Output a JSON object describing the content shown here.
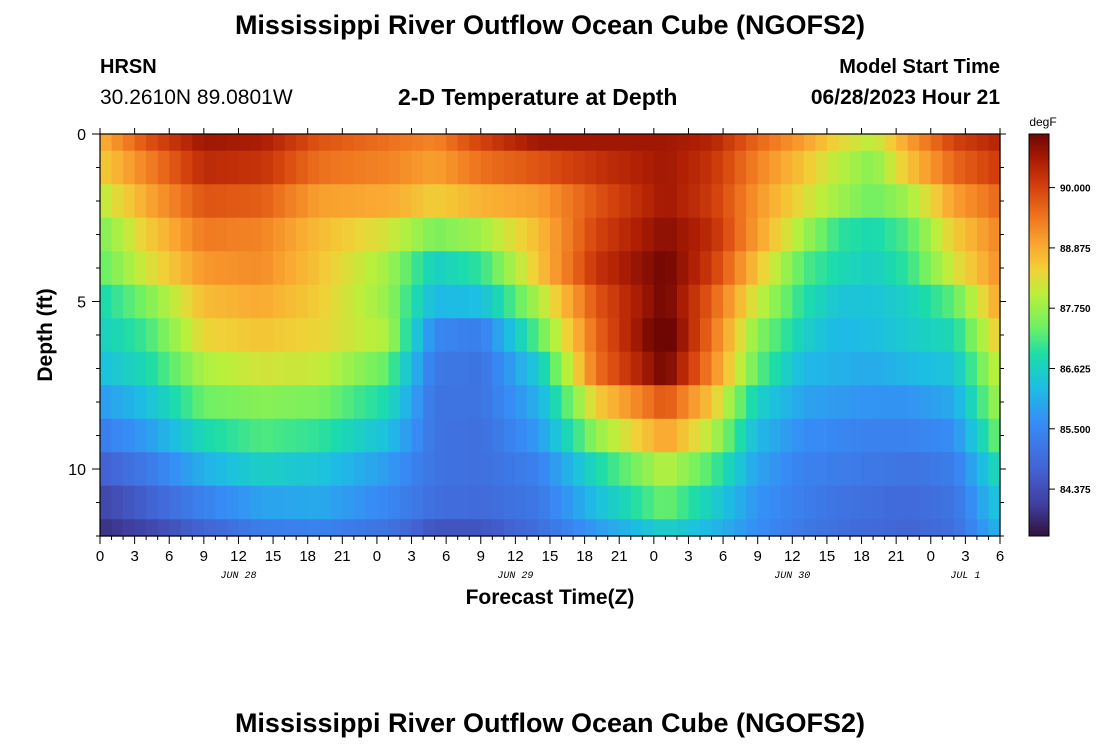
{
  "header": {
    "title": "Mississippi River Outflow Ocean Cube (NGOFS2)",
    "station": "HRSN",
    "coords": "30.2610N  89.0801W",
    "subtitle": "2-D Temperature at Depth",
    "model_start_label": "Model Start Time",
    "model_start_value": "06/28/2023 Hour 21"
  },
  "footer": {
    "title": "Mississippi River Outflow Ocean Cube (NGOFS2)"
  },
  "chart_data": {
    "type": "heatmap",
    "xlabel": "Forecast Time(Z)",
    "ylabel": "Depth (ft)",
    "x_tick_labels": [
      "0",
      "3",
      "6",
      "9",
      "12",
      "15",
      "18",
      "21",
      "0",
      "3",
      "6",
      "9",
      "12",
      "15",
      "18",
      "21",
      "0",
      "3",
      "6",
      "9",
      "12",
      "15",
      "18",
      "21",
      "0",
      "3",
      "6"
    ],
    "x_tick_step_hours": 3,
    "x_range_hours": [
      0,
      78
    ],
    "date_labels": [
      {
        "label": "JUN 28",
        "hour": 12
      },
      {
        "label": "JUN 29",
        "hour": 36
      },
      {
        "label": "JUN 30",
        "hour": 60
      },
      {
        "label": "JUL 1",
        "hour": 75
      }
    ],
    "y_ticks": [
      0,
      5,
      10
    ],
    "y_range_ft": [
      0,
      12
    ],
    "depth_levels_ft": [
      0,
      1,
      2,
      3,
      4,
      5,
      6,
      7,
      8,
      9,
      10,
      11,
      12
    ],
    "colorbar": {
      "unit": "degF",
      "range": [
        83.5,
        91.0
      ],
      "tick_values": [
        84.375,
        85.5,
        86.625,
        87.75,
        88.875,
        90.0
      ],
      "tick_labels": [
        "84.375",
        "85.500",
        "86.625",
        "87.750",
        "88.875",
        "90.000"
      ]
    },
    "keyframes_hours": [
      0,
      4,
      9,
      14,
      19,
      25,
      29,
      33,
      38,
      43,
      49,
      53,
      57,
      61,
      64,
      67,
      70,
      74,
      78
    ],
    "temperature_degF_by_depth": [
      [
        88.8,
        89.8,
        90.6,
        90.5,
        89.8,
        89.5,
        89.3,
        90.0,
        90.6,
        90.6,
        90.6,
        90.4,
        89.6,
        89.0,
        88.4,
        88.0,
        89.0,
        90.0,
        90.4
      ],
      [
        88.5,
        89.3,
        90.3,
        90.2,
        89.5,
        89.3,
        89.0,
        89.5,
        89.8,
        90.2,
        90.6,
        90.2,
        89.3,
        88.6,
        88.0,
        87.6,
        88.6,
        89.6,
        90.1
      ],
      [
        88.0,
        88.9,
        89.8,
        89.7,
        89.0,
        88.9,
        88.5,
        88.8,
        89.0,
        89.8,
        90.6,
        90.1,
        89.1,
        88.3,
        87.8,
        87.4,
        87.8,
        89.0,
        89.6
      ],
      [
        87.5,
        88.5,
        89.4,
        89.3,
        88.7,
        88.2,
        87.5,
        87.8,
        88.7,
        90.0,
        90.8,
        90.3,
        89.0,
        87.8,
        87.0,
        86.8,
        87.2,
        88.5,
        89.3
      ],
      [
        87.3,
        88.2,
        89.1,
        89.2,
        88.6,
        87.8,
        86.6,
        87.0,
        88.6,
        90.2,
        91.0,
        90.1,
        88.6,
        87.2,
        86.8,
        86.6,
        87.0,
        88.2,
        89.2
      ],
      [
        86.8,
        87.5,
        88.7,
        88.9,
        88.5,
        87.7,
        86.2,
        86.3,
        87.9,
        89.8,
        91.0,
        89.7,
        88.1,
        86.9,
        86.4,
        86.4,
        86.6,
        87.3,
        89.0
      ],
      [
        86.6,
        87.1,
        88.4,
        88.6,
        88.4,
        87.9,
        85.5,
        85.3,
        87.3,
        89.6,
        91.3,
        89.5,
        87.6,
        86.6,
        86.2,
        86.3,
        86.5,
        86.8,
        88.6
      ],
      [
        86.3,
        86.8,
        87.9,
        88.2,
        88.1,
        87.3,
        85.2,
        85.1,
        86.5,
        89.5,
        91.0,
        89.3,
        87.3,
        86.2,
        86.1,
        86.0,
        86.2,
        86.4,
        88.2
      ],
      [
        85.8,
        86.3,
        87.4,
        87.6,
        87.5,
        86.8,
        85.1,
        85.1,
        86.1,
        88.5,
        89.8,
        88.6,
        86.6,
        85.9,
        85.8,
        85.7,
        85.7,
        86.0,
        87.9
      ],
      [
        85.3,
        85.8,
        86.8,
        87.2,
        87.0,
        86.3,
        85.1,
        85.0,
        85.8,
        87.7,
        89.0,
        88.0,
        86.2,
        85.6,
        85.5,
        85.4,
        85.4,
        85.6,
        87.5
      ],
      [
        84.7,
        85.2,
        86.1,
        86.6,
        86.4,
        85.8,
        85.1,
        85.0,
        85.4,
        86.8,
        88.0,
        87.2,
        85.9,
        85.4,
        85.3,
        85.2,
        85.1,
        85.3,
        86.9
      ],
      [
        84.2,
        84.7,
        85.4,
        85.9,
        86.0,
        85.5,
        85.0,
        84.9,
        85.2,
        86.3,
        87.4,
        86.6,
        85.7,
        85.3,
        85.1,
        85.0,
        84.9,
        85.1,
        86.5
      ],
      [
        83.9,
        84.2,
        84.8,
        85.3,
        85.4,
        85.1,
        84.5,
        84.5,
        85.0,
        85.8,
        86.6,
        86.2,
        85.6,
        85.2,
        85.0,
        84.9,
        84.8,
        85.0,
        86.2
      ]
    ]
  }
}
